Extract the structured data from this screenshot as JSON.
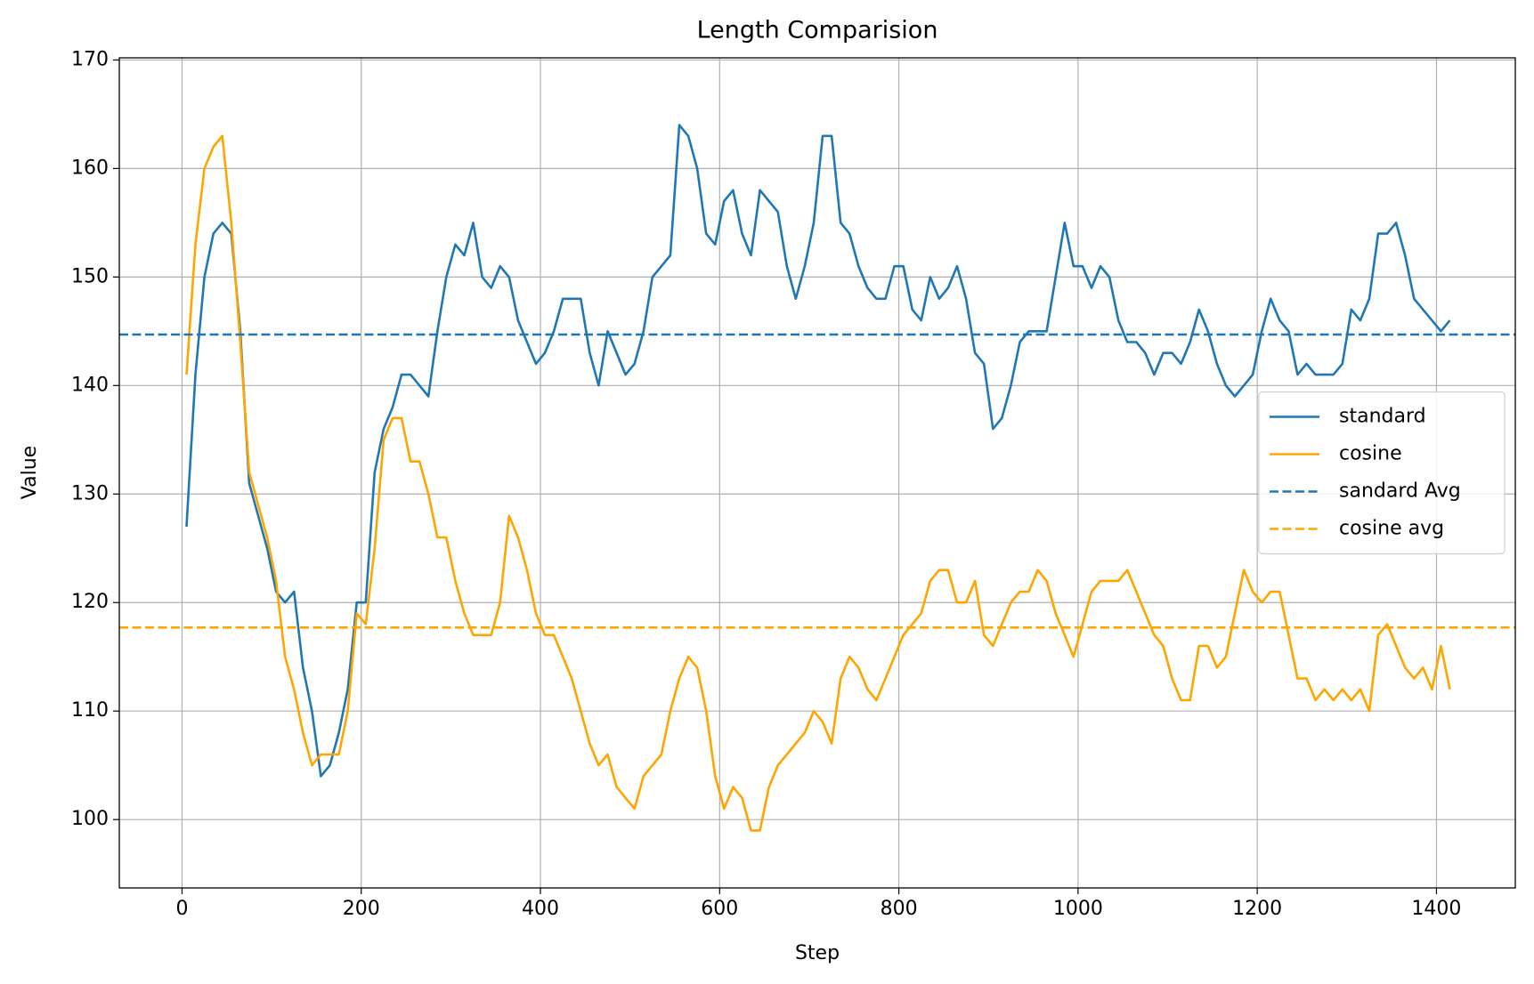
{
  "chart_data": {
    "type": "line",
    "title": "Length Comparision",
    "x_label": "Step",
    "y_label": "Value",
    "x": [
      5,
      15,
      25,
      35,
      45,
      55,
      65,
      75,
      85,
      95,
      105,
      115,
      125,
      135,
      145,
      155,
      165,
      175,
      185,
      195,
      205,
      215,
      225,
      235,
      245,
      255,
      265,
      275,
      285,
      295,
      305,
      315,
      325,
      335,
      345,
      355,
      365,
      375,
      385,
      395,
      405,
      415,
      425,
      435,
      445,
      455,
      465,
      475,
      485,
      495,
      505,
      515,
      525,
      535,
      545,
      555,
      565,
      575,
      585,
      595,
      605,
      615,
      625,
      635,
      645,
      655,
      665,
      675,
      685,
      695,
      705,
      715,
      725,
      735,
      745,
      755,
      765,
      775,
      785,
      795,
      805,
      815,
      825,
      835,
      845,
      855,
      865,
      875,
      885,
      895,
      905,
      915,
      925,
      935,
      945,
      955,
      965,
      975,
      985,
      995,
      1005,
      1015,
      1025,
      1035,
      1045,
      1055,
      1065,
      1075,
      1085,
      1095,
      1105,
      1115,
      1125,
      1135,
      1145,
      1155,
      1165,
      1175,
      1185,
      1195,
      1205,
      1215,
      1225,
      1235,
      1245,
      1255,
      1265,
      1275,
      1285,
      1295,
      1305,
      1315,
      1325,
      1335,
      1345,
      1355,
      1365,
      1375,
      1385,
      1395,
      1405,
      1415
    ],
    "series": [
      {
        "name": "standard",
        "color": "#1f77b4",
        "values": [
          127,
          141,
          150,
          154,
          155,
          154,
          145,
          131,
          128,
          125,
          121,
          120,
          121,
          114,
          110,
          104,
          105,
          108,
          112,
          120,
          120,
          132,
          136,
          138,
          141,
          141,
          140,
          139,
          145,
          150,
          153,
          152,
          155,
          150,
          149,
          151,
          150,
          146,
          144,
          142,
          143,
          145,
          148,
          148,
          148,
          143,
          140,
          145,
          143,
          141,
          142,
          145,
          150,
          151,
          152,
          164,
          163,
          160,
          154,
          153,
          157,
          158,
          154,
          152,
          158,
          157,
          156,
          151,
          148,
          151,
          155,
          163,
          163,
          155,
          154,
          151,
          149,
          148,
          148,
          151,
          151,
          147,
          146,
          150,
          148,
          149,
          151,
          148,
          143,
          142,
          136,
          137,
          140,
          144,
          145,
          145,
          145,
          150,
          155,
          151,
          151,
          149,
          151,
          150,
          146,
          144,
          144,
          143,
          141,
          143,
          143,
          142,
          144,
          147,
          145,
          142,
          140,
          139,
          140,
          141,
          145,
          148,
          146,
          145,
          141,
          142,
          141,
          141,
          141,
          142,
          147,
          146,
          148,
          154,
          154,
          155,
          152,
          148,
          147,
          146,
          145,
          146
        ]
      },
      {
        "name": "cosine",
        "color": "#ffa500",
        "values": [
          141,
          153,
          160,
          162,
          163,
          155,
          144,
          132,
          129,
          126,
          122,
          115,
          112,
          108,
          105,
          106,
          106,
          106,
          110,
          119,
          118,
          125,
          135,
          137,
          137,
          133,
          133,
          130,
          126,
          126,
          122,
          119,
          117,
          117,
          117,
          120,
          128,
          126,
          123,
          119,
          117,
          117,
          115,
          113,
          110,
          107,
          105,
          106,
          103,
          102,
          101,
          104,
          105,
          106,
          110,
          113,
          115,
          114,
          110,
          104,
          101,
          103,
          102,
          99,
          99,
          103,
          105,
          106,
          107,
          108,
          110,
          109,
          107,
          113,
          115,
          114,
          112,
          111,
          113,
          115,
          117,
          118,
          119,
          122,
          123,
          123,
          120,
          120,
          122,
          117,
          116,
          118,
          120,
          121,
          121,
          123,
          122,
          119,
          117,
          115,
          118,
          121,
          122,
          122,
          122,
          123,
          121,
          119,
          117,
          116,
          113,
          111,
          111,
          116,
          116,
          114,
          115,
          119,
          123,
          121,
          120,
          121,
          121,
          117,
          113,
          113,
          111,
          112,
          111,
          112,
          111,
          112,
          110,
          117,
          118,
          116,
          114,
          113,
          114,
          112,
          116,
          112
        ]
      }
    ],
    "hlines": [
      {
        "name": "sandard Avg",
        "color": "#1f77b4",
        "value": 144.7,
        "style": "dashed"
      },
      {
        "name": "cosine avg",
        "color": "#ffa500",
        "value": 117.7,
        "style": "dashed"
      }
    ],
    "xlim": [
      -70,
      1488
    ],
    "xticks": [
      0,
      200,
      400,
      600,
      800,
      1000,
      1200,
      1400
    ],
    "ylim": [
      93.7,
      170.2
    ],
    "yticks": [
      100,
      110,
      120,
      130,
      140,
      150,
      160,
      170
    ],
    "grid": true,
    "legend": "center right"
  }
}
